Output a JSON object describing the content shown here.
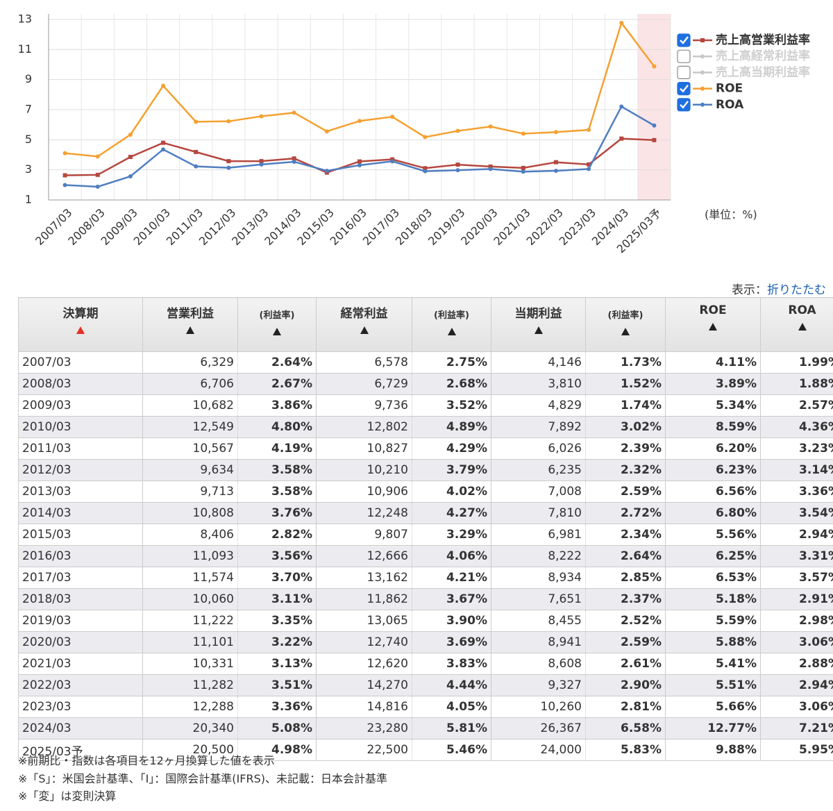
{
  "chart_data": {
    "type": "line",
    "categories": [
      "2007/03",
      "2008/03",
      "2009/03",
      "2010/03",
      "2011/03",
      "2012/03",
      "2013/03",
      "2014/03",
      "2015/03",
      "2016/03",
      "2017/03",
      "2018/03",
      "2019/03",
      "2020/03",
      "2021/03",
      "2022/03",
      "2023/03",
      "2024/03",
      "2025/03予"
    ],
    "highlight": "2025/03予",
    "unit_label": "(単位：%)",
    "ylim": [
      1,
      13
    ],
    "yticks": [
      1,
      3,
      5,
      7,
      9,
      11,
      13
    ],
    "grid": true,
    "series": [
      {
        "name": "売上高営業利益率",
        "color": "#b5473f",
        "checked": true,
        "marker": "square",
        "values": [
          2.64,
          2.67,
          3.86,
          4.8,
          4.19,
          3.58,
          3.58,
          3.76,
          2.82,
          3.56,
          3.7,
          3.11,
          3.35,
          3.22,
          3.13,
          3.51,
          3.36,
          5.08,
          4.98
        ]
      },
      {
        "name": "売上高経常利益率",
        "color": "#c8c8c8",
        "checked": false
      },
      {
        "name": "売上高当期利益率",
        "color": "#c8c8c8",
        "checked": false
      },
      {
        "name": "ROE",
        "color": "#f5a030",
        "checked": true,
        "marker": "circle",
        "values": [
          4.11,
          3.89,
          5.34,
          8.59,
          6.2,
          6.23,
          6.56,
          6.8,
          5.56,
          6.25,
          6.53,
          5.18,
          5.59,
          5.88,
          5.41,
          5.51,
          5.66,
          12.77,
          9.88
        ]
      },
      {
        "name": "ROA",
        "color": "#4f7ec1",
        "checked": true,
        "marker": "circle",
        "values": [
          1.99,
          1.88,
          2.57,
          4.36,
          3.23,
          3.14,
          3.36,
          3.54,
          2.94,
          3.31,
          3.57,
          2.91,
          2.98,
          3.06,
          2.88,
          2.94,
          3.06,
          7.21,
          5.95
        ]
      }
    ]
  },
  "display": {
    "label": "表示：",
    "link": "折りたたむ"
  },
  "table": {
    "headers": [
      "決算期",
      "営業利益",
      "(利益率)",
      "経常利益",
      "(利益率)",
      "当期利益",
      "(利益率)",
      "ROE",
      "ROA"
    ],
    "rows": [
      [
        "2007/03",
        "6,329",
        "2.64%",
        "6,578",
        "2.75%",
        "4,146",
        "1.73%",
        "4.11%",
        "1.99%"
      ],
      [
        "2008/03",
        "6,706",
        "2.67%",
        "6,729",
        "2.68%",
        "3,810",
        "1.52%",
        "3.89%",
        "1.88%"
      ],
      [
        "2009/03",
        "10,682",
        "3.86%",
        "9,736",
        "3.52%",
        "4,829",
        "1.74%",
        "5.34%",
        "2.57%"
      ],
      [
        "2010/03",
        "12,549",
        "4.80%",
        "12,802",
        "4.89%",
        "7,892",
        "3.02%",
        "8.59%",
        "4.36%"
      ],
      [
        "2011/03",
        "10,567",
        "4.19%",
        "10,827",
        "4.29%",
        "6,026",
        "2.39%",
        "6.20%",
        "3.23%"
      ],
      [
        "2012/03",
        "9,634",
        "3.58%",
        "10,210",
        "3.79%",
        "6,235",
        "2.32%",
        "6.23%",
        "3.14%"
      ],
      [
        "2013/03",
        "9,713",
        "3.58%",
        "10,906",
        "4.02%",
        "7,008",
        "2.59%",
        "6.56%",
        "3.36%"
      ],
      [
        "2014/03",
        "10,808",
        "3.76%",
        "12,248",
        "4.27%",
        "7,810",
        "2.72%",
        "6.80%",
        "3.54%"
      ],
      [
        "2015/03",
        "8,406",
        "2.82%",
        "9,807",
        "3.29%",
        "6,981",
        "2.34%",
        "5.56%",
        "2.94%"
      ],
      [
        "2016/03",
        "11,093",
        "3.56%",
        "12,666",
        "4.06%",
        "8,222",
        "2.64%",
        "6.25%",
        "3.31%"
      ],
      [
        "2017/03",
        "11,574",
        "3.70%",
        "13,162",
        "4.21%",
        "8,934",
        "2.85%",
        "6.53%",
        "3.57%"
      ],
      [
        "2018/03",
        "10,060",
        "3.11%",
        "11,862",
        "3.67%",
        "7,651",
        "2.37%",
        "5.18%",
        "2.91%"
      ],
      [
        "2019/03",
        "11,222",
        "3.35%",
        "13,065",
        "3.90%",
        "8,455",
        "2.52%",
        "5.59%",
        "2.98%"
      ],
      [
        "2020/03",
        "11,101",
        "3.22%",
        "12,740",
        "3.69%",
        "8,941",
        "2.59%",
        "5.88%",
        "3.06%"
      ],
      [
        "2021/03",
        "10,331",
        "3.13%",
        "12,620",
        "3.83%",
        "8,608",
        "2.61%",
        "5.41%",
        "2.88%"
      ],
      [
        "2022/03",
        "11,282",
        "3.51%",
        "14,270",
        "4.44%",
        "9,327",
        "2.90%",
        "5.51%",
        "2.94%"
      ],
      [
        "2023/03",
        "12,288",
        "3.36%",
        "14,816",
        "4.05%",
        "10,260",
        "2.81%",
        "5.66%",
        "3.06%"
      ],
      [
        "2024/03",
        "20,340",
        "5.08%",
        "23,280",
        "5.81%",
        "26,367",
        "6.58%",
        "12.77%",
        "7.21%"
      ],
      [
        "2025/03予",
        "20,500",
        "4.98%",
        "22,500",
        "5.46%",
        "24,000",
        "5.83%",
        "9.88%",
        "5.95%"
      ]
    ]
  },
  "notes": [
    "※前期比・指数は各項目を12ヶ月換算した値を表示",
    "※「S」：米国会計基準、「I」：国際会計基準(IFRS)、未記載：日本会計基準",
    "※「変」は変則決算"
  ]
}
